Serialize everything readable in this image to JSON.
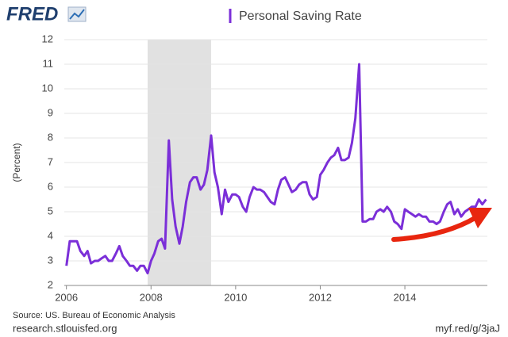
{
  "logo": "FRED",
  "chart_data": {
    "type": "line",
    "y_label": "(Percent)",
    "x": [
      2006,
      2006.08,
      2006.17,
      2006.25,
      2006.33,
      2006.42,
      2006.5,
      2006.58,
      2006.67,
      2006.75,
      2006.83,
      2006.92,
      2007,
      2007.08,
      2007.17,
      2007.25,
      2007.33,
      2007.42,
      2007.5,
      2007.58,
      2007.67,
      2007.75,
      2007.83,
      2007.92,
      2008,
      2008.08,
      2008.17,
      2008.25,
      2008.33,
      2008.42,
      2008.5,
      2008.58,
      2008.67,
      2008.75,
      2008.83,
      2008.92,
      2009,
      2009.08,
      2009.17,
      2009.25,
      2009.33,
      2009.42,
      2009.5,
      2009.58,
      2009.67,
      2009.75,
      2009.83,
      2009.92,
      2010,
      2010.08,
      2010.17,
      2010.25,
      2010.33,
      2010.42,
      2010.5,
      2010.58,
      2010.67,
      2010.75,
      2010.83,
      2010.92,
      2011,
      2011.08,
      2011.17,
      2011.25,
      2011.33,
      2011.42,
      2011.5,
      2011.58,
      2011.67,
      2011.75,
      2011.83,
      2011.92,
      2012,
      2012.08,
      2012.17,
      2012.25,
      2012.33,
      2012.42,
      2012.5,
      2012.58,
      2012.67,
      2012.75,
      2012.83,
      2012.92,
      2013,
      2013.08,
      2013.17,
      2013.25,
      2013.33,
      2013.42,
      2013.5,
      2013.58,
      2013.67,
      2013.75,
      2013.83,
      2013.92,
      2014,
      2014.08,
      2014.17,
      2014.25,
      2014.33,
      2014.42,
      2014.5,
      2014.58,
      2014.67,
      2014.75,
      2014.83,
      2014.92,
      2015,
      2015.08,
      2015.17,
      2015.25,
      2015.33,
      2015.42,
      2015.5,
      2015.58,
      2015.67,
      2015.75,
      2015.83,
      2015.92
    ],
    "series": [
      {
        "name": "Personal Saving Rate",
        "color": "#7b2fd8",
        "values": [
          2.8,
          3.8,
          3.8,
          3.8,
          3.4,
          3.2,
          3.4,
          2.9,
          3.0,
          3.0,
          3.1,
          3.2,
          3.0,
          3.0,
          3.3,
          3.6,
          3.2,
          3.0,
          2.8,
          2.8,
          2.6,
          2.8,
          2.8,
          2.5,
          3.0,
          3.3,
          3.8,
          3.9,
          3.5,
          7.9,
          5.5,
          4.4,
          3.7,
          4.4,
          5.4,
          6.2,
          6.4,
          6.4,
          5.9,
          6.1,
          6.7,
          8.1,
          6.6,
          6.0,
          4.9,
          5.9,
          5.4,
          5.7,
          5.7,
          5.6,
          5.2,
          5.0,
          5.6,
          6.0,
          5.9,
          5.9,
          5.8,
          5.6,
          5.4,
          5.3,
          5.9,
          6.3,
          6.4,
          6.1,
          5.8,
          5.9,
          6.1,
          6.2,
          6.2,
          5.7,
          5.5,
          5.6,
          6.5,
          6.7,
          7.0,
          7.2,
          7.3,
          7.6,
          7.1,
          7.1,
          7.2,
          7.8,
          8.8,
          11.0,
          4.6,
          4.6,
          4.7,
          4.7,
          5.0,
          5.1,
          5.0,
          5.2,
          5.0,
          4.6,
          4.5,
          4.3,
          5.1,
          5.0,
          4.9,
          4.8,
          4.9,
          4.8,
          4.8,
          4.6,
          4.6,
          4.5,
          4.6,
          5.0,
          5.3,
          5.4,
          4.9,
          5.1,
          4.8,
          5.0,
          5.1,
          5.2,
          5.2,
          5.5,
          5.3,
          5.5
        ]
      }
    ],
    "shaded_ranges": [
      [
        2007.92,
        2009.42
      ]
    ],
    "xlim": [
      2005.95,
      2015.95
    ],
    "xticks": [
      2006,
      2008,
      2010,
      2012,
      2014
    ],
    "ylim": [
      2,
      12
    ],
    "yticks": [
      2,
      3,
      4,
      5,
      6,
      7,
      8,
      9,
      10,
      11,
      12
    ],
    "grid": true,
    "source": "Source: US. Bureau of Economic Analysis"
  },
  "footer": {
    "left": "research.stlouisfed.org",
    "right": "myf.red/g/3jaJ"
  }
}
